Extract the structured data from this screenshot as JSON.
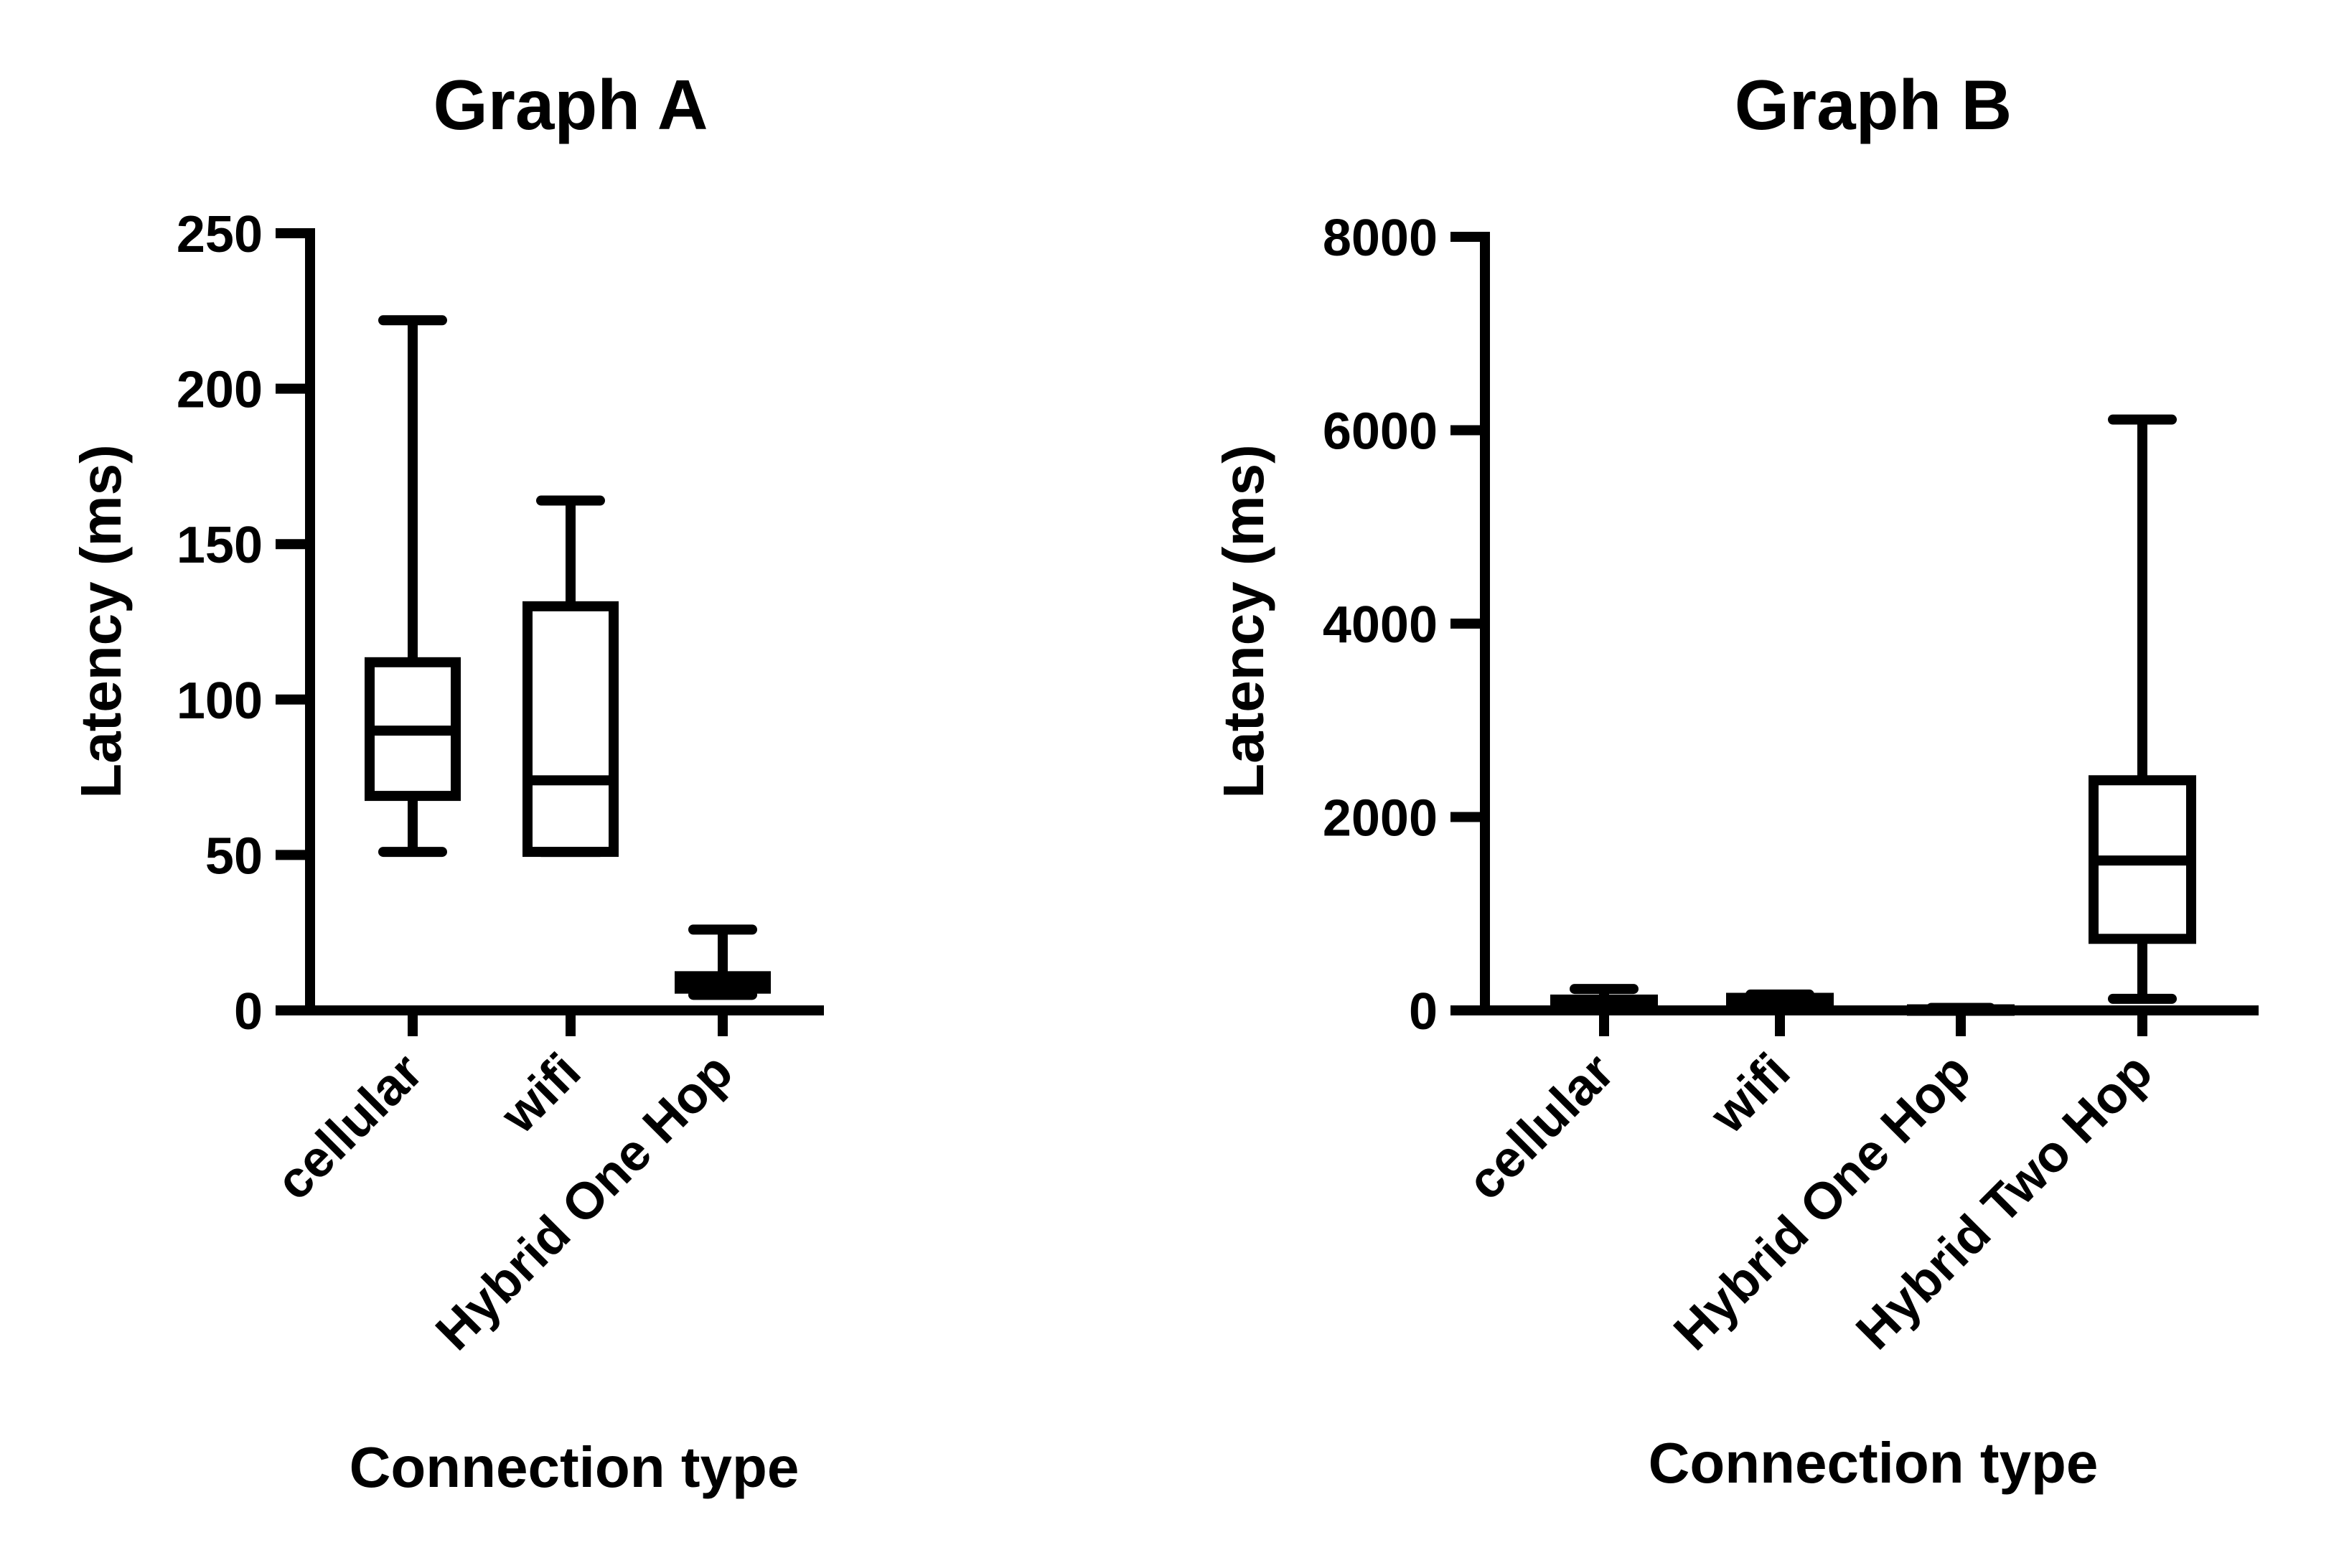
{
  "chart_data": [
    {
      "type": "box",
      "title": "Graph A",
      "xlabel": "Connection type",
      "ylabel": "Latency (ms)",
      "ylim": [
        0,
        250
      ],
      "yticks": [
        0,
        50,
        100,
        150,
        200,
        250
      ],
      "categories": [
        "cellular",
        "wifi",
        "Hybrid One Hop"
      ],
      "boxes": [
        {
          "category": "cellular",
          "min": 51,
          "q1": 69,
          "median": 90,
          "q3": 112,
          "max": 222
        },
        {
          "category": "wifi",
          "min": 51,
          "q1": 51,
          "median": 74,
          "q3": 130,
          "max": 164
        },
        {
          "category": "Hybrid One Hop",
          "min": 5,
          "q1": 7,
          "median": 9,
          "q3": 11,
          "max": 26
        }
      ],
      "grid": false,
      "legend": "none"
    },
    {
      "type": "box",
      "title": "Graph B",
      "xlabel": "Connection type",
      "ylabel": "Latency (ms)",
      "ylim": [
        0,
        8000
      ],
      "yticks": [
        0,
        2000,
        4000,
        6000,
        8000
      ],
      "categories": [
        "cellular",
        "wifi",
        "Hybrid One Hop",
        "Hybrid Two Hop"
      ],
      "boxes": [
        {
          "category": "cellular",
          "min": 51,
          "q1": 69,
          "median": 90,
          "q3": 112,
          "max": 222
        },
        {
          "category": "wifi",
          "min": 51,
          "q1": 51,
          "median": 74,
          "q3": 130,
          "max": 164
        },
        {
          "category": "Hybrid One Hop",
          "min": 5,
          "q1": 7,
          "median": 9,
          "q3": 11,
          "max": 26
        },
        {
          "category": "Hybrid Two Hop",
          "min": 120,
          "q1": 740,
          "median": 1550,
          "q3": 2380,
          "max": 6110
        }
      ],
      "grid": false,
      "legend": "none"
    }
  ]
}
